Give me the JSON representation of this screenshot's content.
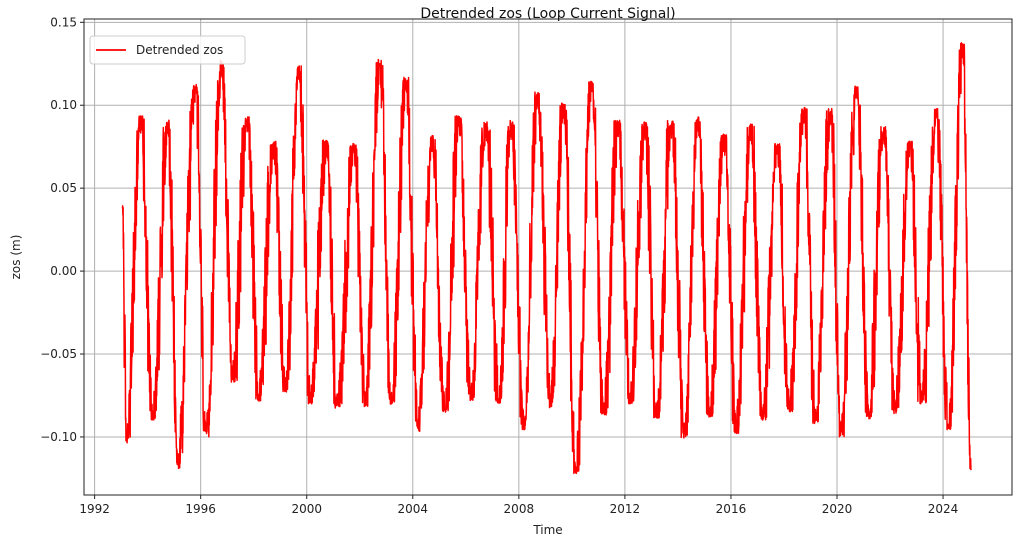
{
  "chart_data": {
    "type": "line",
    "title": "Detrended zos (Loop Current Signal)",
    "xlabel": "Time",
    "ylabel": "zos (m)",
    "xlim": [
      1991.6,
      2026.6
    ],
    "ylim": [
      -0.135,
      0.152
    ],
    "x_ticks": [
      1992,
      1996,
      2000,
      2004,
      2008,
      2012,
      2016,
      2020,
      2024
    ],
    "y_ticks": [
      -0.1,
      -0.05,
      0.0,
      0.05,
      0.1,
      0.15
    ],
    "y_tick_labels": [
      "−0.10",
      "−0.05",
      "0.00",
      "0.05",
      "0.10",
      "0.15"
    ],
    "grid": true,
    "legend_position": "top-left",
    "series": [
      {
        "name": "Detrended zos",
        "color": "#ff0000",
        "x_start": 1993.0,
        "x_end": 2025.05,
        "annual_maxima": [
          [
            1993.05,
            0.04
          ],
          [
            1993.75,
            0.094
          ],
          [
            1994.75,
            0.091
          ],
          [
            1995.8,
            0.113
          ],
          [
            1996.8,
            0.128
          ],
          [
            1997.75,
            0.093
          ],
          [
            1998.75,
            0.079
          ],
          [
            1999.7,
            0.124
          ],
          [
            2000.75,
            0.079
          ],
          [
            2001.8,
            0.077
          ],
          [
            2002.75,
            0.128
          ],
          [
            2003.75,
            0.117
          ],
          [
            2004.75,
            0.082
          ],
          [
            2005.75,
            0.094
          ],
          [
            2006.75,
            0.09
          ],
          [
            2007.7,
            0.091
          ],
          [
            2008.7,
            0.108
          ],
          [
            2009.7,
            0.102
          ],
          [
            2010.75,
            0.115
          ],
          [
            2011.75,
            0.091
          ],
          [
            2012.75,
            0.09
          ],
          [
            2013.75,
            0.091
          ],
          [
            2014.75,
            0.093
          ],
          [
            2015.75,
            0.083
          ],
          [
            2016.75,
            0.089
          ],
          [
            2017.75,
            0.078
          ],
          [
            2018.75,
            0.099
          ],
          [
            2019.75,
            0.098
          ],
          [
            2020.75,
            0.112
          ],
          [
            2021.75,
            0.088
          ],
          [
            2022.75,
            0.079
          ],
          [
            2023.75,
            0.098
          ],
          [
            2024.75,
            0.138
          ]
        ],
        "annual_minima": [
          [
            1993.2,
            -0.104
          ],
          [
            1994.2,
            -0.09
          ],
          [
            1995.15,
            -0.119
          ],
          [
            1996.2,
            -0.1
          ],
          [
            1997.2,
            -0.067
          ],
          [
            1998.2,
            -0.079
          ],
          [
            1999.2,
            -0.073
          ],
          [
            2000.15,
            -0.08
          ],
          [
            2001.15,
            -0.083
          ],
          [
            2002.2,
            -0.082
          ],
          [
            2003.2,
            -0.081
          ],
          [
            2004.2,
            -0.097
          ],
          [
            2005.2,
            -0.085
          ],
          [
            2006.2,
            -0.078
          ],
          [
            2007.25,
            -0.08
          ],
          [
            2008.2,
            -0.096
          ],
          [
            2009.2,
            -0.083
          ],
          [
            2010.15,
            -0.123
          ],
          [
            2011.2,
            -0.088
          ],
          [
            2012.2,
            -0.08
          ],
          [
            2013.2,
            -0.09
          ],
          [
            2014.25,
            -0.101
          ],
          [
            2015.2,
            -0.088
          ],
          [
            2016.2,
            -0.098
          ],
          [
            2017.2,
            -0.09
          ],
          [
            2018.2,
            -0.085
          ],
          [
            2019.2,
            -0.092
          ],
          [
            2020.15,
            -0.1
          ],
          [
            2021.2,
            -0.089
          ],
          [
            2022.2,
            -0.086
          ],
          [
            2023.2,
            -0.08
          ],
          [
            2024.2,
            -0.096
          ],
          [
            2025.05,
            -0.12
          ]
        ]
      }
    ]
  }
}
